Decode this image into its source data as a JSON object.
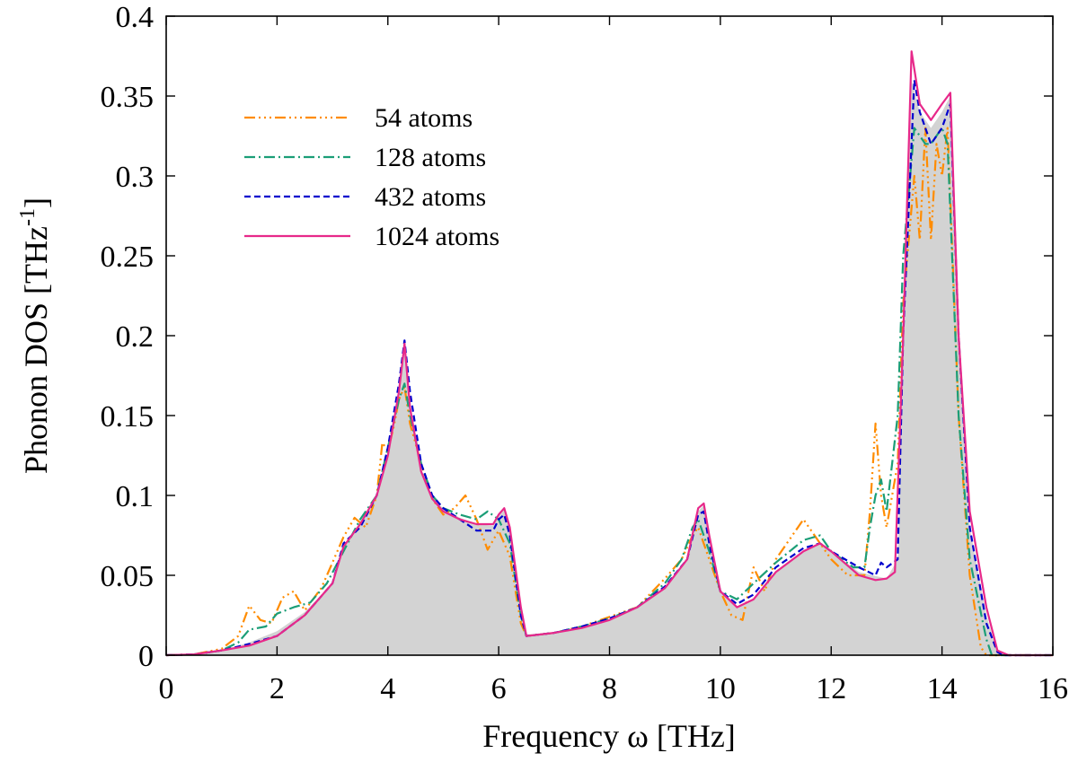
{
  "chart_data": {
    "type": "line",
    "xlabel": "Frequency ω [THz]",
    "ylabel_main": "Phonon DOS [THz",
    "ylabel_sup": "-1",
    "ylabel_end": "]",
    "xlim": [
      0,
      16
    ],
    "ylim": [
      0,
      0.4
    ],
    "xticks": [
      0,
      2,
      4,
      6,
      8,
      10,
      12,
      14,
      16
    ],
    "yticks": [
      0,
      0.05,
      0.1,
      0.15,
      0.2,
      0.25,
      0.3,
      0.35,
      0.4
    ],
    "xtick_labels": [
      "0",
      "2",
      "4",
      "6",
      "8",
      "10",
      "12",
      "14",
      "16"
    ],
    "ytick_labels": [
      "0",
      "0.05",
      "0.1",
      "0.15",
      "0.2",
      "0.25",
      "0.3",
      "0.35",
      "0.4"
    ],
    "grid": false,
    "legend_position": "top-left",
    "reference_fill": {
      "color": "#d3d3d3",
      "points": [
        [
          0,
          0
        ],
        [
          0.5,
          0.0005
        ],
        [
          1.0,
          0.003
        ],
        [
          1.5,
          0.008
        ],
        [
          2.0,
          0.015
        ],
        [
          2.5,
          0.027
        ],
        [
          3.0,
          0.045
        ],
        [
          3.2,
          0.068
        ],
        [
          3.5,
          0.082
        ],
        [
          3.8,
          0.1
        ],
        [
          4.0,
          0.125
        ],
        [
          4.2,
          0.165
        ],
        [
          4.3,
          0.193
        ],
        [
          4.4,
          0.155
        ],
        [
          4.6,
          0.115
        ],
        [
          4.8,
          0.098
        ],
        [
          5.0,
          0.092
        ],
        [
          5.3,
          0.086
        ],
        [
          5.6,
          0.082
        ],
        [
          5.9,
          0.081
        ],
        [
          6.0,
          0.087
        ],
        [
          6.1,
          0.091
        ],
        [
          6.2,
          0.08
        ],
        [
          6.4,
          0.03
        ],
        [
          6.5,
          0.013
        ],
        [
          7.0,
          0.014
        ],
        [
          7.5,
          0.017
        ],
        [
          8.0,
          0.022
        ],
        [
          8.5,
          0.03
        ],
        [
          9.0,
          0.042
        ],
        [
          9.4,
          0.06
        ],
        [
          9.6,
          0.09
        ],
        [
          9.7,
          0.094
        ],
        [
          9.8,
          0.072
        ],
        [
          10.0,
          0.04
        ],
        [
          10.3,
          0.03
        ],
        [
          10.6,
          0.035
        ],
        [
          11.0,
          0.052
        ],
        [
          11.5,
          0.065
        ],
        [
          11.8,
          0.07
        ],
        [
          12.0,
          0.065
        ],
        [
          12.5,
          0.052
        ],
        [
          13.0,
          0.048
        ],
        [
          13.2,
          0.06
        ],
        [
          13.3,
          0.2
        ],
        [
          13.45,
          0.36
        ],
        [
          13.6,
          0.34
        ],
        [
          13.8,
          0.33
        ],
        [
          14.0,
          0.34
        ],
        [
          14.15,
          0.35
        ],
        [
          14.3,
          0.2
        ],
        [
          14.5,
          0.08
        ],
        [
          14.8,
          0.025
        ],
        [
          15.0,
          0.002
        ],
        [
          15.2,
          0
        ],
        [
          16.0,
          0
        ]
      ]
    },
    "series": [
      {
        "name": "54 atoms",
        "color": "#ff8c00",
        "dash": "12,4,2,4,2,4,2,4",
        "points": [
          [
            0,
            0
          ],
          [
            0.5,
            0.0005
          ],
          [
            1.0,
            0.004
          ],
          [
            1.3,
            0.012
          ],
          [
            1.5,
            0.031
          ],
          [
            1.7,
            0.022
          ],
          [
            1.9,
            0.02
          ],
          [
            2.1,
            0.036
          ],
          [
            2.3,
            0.04
          ],
          [
            2.5,
            0.028
          ],
          [
            2.8,
            0.042
          ],
          [
            3.0,
            0.058
          ],
          [
            3.2,
            0.074
          ],
          [
            3.4,
            0.086
          ],
          [
            3.6,
            0.08
          ],
          [
            3.8,
            0.1
          ],
          [
            3.9,
            0.133
          ],
          [
            4.0,
            0.128
          ],
          [
            4.1,
            0.142
          ],
          [
            4.2,
            0.16
          ],
          [
            4.3,
            0.168
          ],
          [
            4.4,
            0.145
          ],
          [
            4.6,
            0.12
          ],
          [
            4.8,
            0.098
          ],
          [
            5.0,
            0.088
          ],
          [
            5.2,
            0.092
          ],
          [
            5.4,
            0.1
          ],
          [
            5.6,
            0.085
          ],
          [
            5.8,
            0.066
          ],
          [
            6.0,
            0.078
          ],
          [
            6.2,
            0.062
          ],
          [
            6.4,
            0.02
          ],
          [
            6.5,
            0.012
          ],
          [
            7.0,
            0.014
          ],
          [
            7.5,
            0.018
          ],
          [
            8.0,
            0.024
          ],
          [
            8.5,
            0.03
          ],
          [
            9.0,
            0.048
          ],
          [
            9.3,
            0.06
          ],
          [
            9.5,
            0.075
          ],
          [
            9.6,
            0.08
          ],
          [
            9.8,
            0.06
          ],
          [
            10.0,
            0.04
          ],
          [
            10.2,
            0.025
          ],
          [
            10.4,
            0.022
          ],
          [
            10.6,
            0.055
          ],
          [
            10.8,
            0.04
          ],
          [
            11.0,
            0.06
          ],
          [
            11.2,
            0.07
          ],
          [
            11.5,
            0.085
          ],
          [
            11.7,
            0.075
          ],
          [
            12.0,
            0.06
          ],
          [
            12.3,
            0.05
          ],
          [
            12.6,
            0.05
          ],
          [
            12.7,
            0.09
          ],
          [
            12.8,
            0.145
          ],
          [
            12.9,
            0.1
          ],
          [
            13.0,
            0.08
          ],
          [
            13.2,
            0.12
          ],
          [
            13.3,
            0.22
          ],
          [
            13.5,
            0.3
          ],
          [
            13.6,
            0.26
          ],
          [
            13.7,
            0.33
          ],
          [
            13.8,
            0.26
          ],
          [
            13.9,
            0.32
          ],
          [
            14.0,
            0.3
          ],
          [
            14.1,
            0.33
          ],
          [
            14.3,
            0.15
          ],
          [
            14.5,
            0.05
          ],
          [
            14.7,
            0.005
          ],
          [
            14.8,
            0
          ],
          [
            16.0,
            0
          ]
        ]
      },
      {
        "name": "128 atoms",
        "color": "#1b9e77",
        "dash": "12,4,2,4",
        "points": [
          [
            0,
            0
          ],
          [
            0.5,
            0.0005
          ],
          [
            1.0,
            0.003
          ],
          [
            1.3,
            0.008
          ],
          [
            1.5,
            0.016
          ],
          [
            1.8,
            0.018
          ],
          [
            2.0,
            0.026
          ],
          [
            2.3,
            0.03
          ],
          [
            2.6,
            0.033
          ],
          [
            2.9,
            0.045
          ],
          [
            3.2,
            0.065
          ],
          [
            3.5,
            0.085
          ],
          [
            3.8,
            0.1
          ],
          [
            4.0,
            0.13
          ],
          [
            4.2,
            0.16
          ],
          [
            4.3,
            0.17
          ],
          [
            4.4,
            0.15
          ],
          [
            4.6,
            0.12
          ],
          [
            4.8,
            0.1
          ],
          [
            5.0,
            0.092
          ],
          [
            5.3,
            0.088
          ],
          [
            5.6,
            0.085
          ],
          [
            5.8,
            0.09
          ],
          [
            6.0,
            0.085
          ],
          [
            6.2,
            0.07
          ],
          [
            6.4,
            0.025
          ],
          [
            6.5,
            0.012
          ],
          [
            7.0,
            0.014
          ],
          [
            7.5,
            0.018
          ],
          [
            8.0,
            0.023
          ],
          [
            8.5,
            0.03
          ],
          [
            9.0,
            0.045
          ],
          [
            9.3,
            0.06
          ],
          [
            9.5,
            0.08
          ],
          [
            9.6,
            0.085
          ],
          [
            9.8,
            0.065
          ],
          [
            10.0,
            0.04
          ],
          [
            10.3,
            0.035
          ],
          [
            10.6,
            0.045
          ],
          [
            11.0,
            0.058
          ],
          [
            11.5,
            0.072
          ],
          [
            11.8,
            0.075
          ],
          [
            12.0,
            0.065
          ],
          [
            12.4,
            0.055
          ],
          [
            12.6,
            0.055
          ],
          [
            12.7,
            0.08
          ],
          [
            12.8,
            0.1
          ],
          [
            12.9,
            0.11
          ],
          [
            13.0,
            0.09
          ],
          [
            13.2,
            0.15
          ],
          [
            13.3,
            0.25
          ],
          [
            13.5,
            0.33
          ],
          [
            13.7,
            0.32
          ],
          [
            13.8,
            0.32
          ],
          [
            14.0,
            0.33
          ],
          [
            14.1,
            0.32
          ],
          [
            14.3,
            0.15
          ],
          [
            14.5,
            0.06
          ],
          [
            14.8,
            0.01
          ],
          [
            14.9,
            0
          ],
          [
            16.0,
            0
          ]
        ]
      },
      {
        "name": "432 atoms",
        "color": "#0000cd",
        "dash": "7,4",
        "points": [
          [
            0,
            0
          ],
          [
            0.5,
            0.0005
          ],
          [
            1.0,
            0.003
          ],
          [
            1.5,
            0.007
          ],
          [
            2.0,
            0.012
          ],
          [
            2.5,
            0.025
          ],
          [
            3.0,
            0.045
          ],
          [
            3.2,
            0.07
          ],
          [
            3.5,
            0.08
          ],
          [
            3.8,
            0.1
          ],
          [
            4.0,
            0.13
          ],
          [
            4.2,
            0.17
          ],
          [
            4.3,
            0.197
          ],
          [
            4.4,
            0.165
          ],
          [
            4.6,
            0.12
          ],
          [
            4.8,
            0.1
          ],
          [
            5.0,
            0.092
          ],
          [
            5.3,
            0.085
          ],
          [
            5.6,
            0.078
          ],
          [
            5.9,
            0.078
          ],
          [
            6.0,
            0.085
          ],
          [
            6.1,
            0.088
          ],
          [
            6.2,
            0.075
          ],
          [
            6.4,
            0.025
          ],
          [
            6.5,
            0.012
          ],
          [
            7.0,
            0.014
          ],
          [
            7.5,
            0.018
          ],
          [
            8.0,
            0.023
          ],
          [
            8.5,
            0.03
          ],
          [
            9.0,
            0.043
          ],
          [
            9.4,
            0.06
          ],
          [
            9.6,
            0.088
          ],
          [
            9.7,
            0.09
          ],
          [
            9.8,
            0.07
          ],
          [
            10.0,
            0.04
          ],
          [
            10.3,
            0.032
          ],
          [
            10.6,
            0.038
          ],
          [
            11.0,
            0.055
          ],
          [
            11.5,
            0.067
          ],
          [
            11.8,
            0.07
          ],
          [
            12.0,
            0.065
          ],
          [
            12.5,
            0.055
          ],
          [
            12.8,
            0.05
          ],
          [
            12.9,
            0.058
          ],
          [
            13.0,
            0.055
          ],
          [
            13.2,
            0.06
          ],
          [
            13.3,
            0.2
          ],
          [
            13.5,
            0.36
          ],
          [
            13.6,
            0.34
          ],
          [
            13.8,
            0.32
          ],
          [
            14.0,
            0.33
          ],
          [
            14.15,
            0.345
          ],
          [
            14.3,
            0.2
          ],
          [
            14.5,
            0.08
          ],
          [
            14.8,
            0.02
          ],
          [
            15.0,
            0.002
          ],
          [
            15.1,
            0
          ],
          [
            16.0,
            0
          ]
        ]
      },
      {
        "name": "1024 atoms",
        "color": "#e7298a",
        "dash": "",
        "points": [
          [
            0,
            0
          ],
          [
            0.5,
            0.0005
          ],
          [
            1.0,
            0.003
          ],
          [
            1.5,
            0.006
          ],
          [
            2.0,
            0.012
          ],
          [
            2.5,
            0.025
          ],
          [
            3.0,
            0.045
          ],
          [
            3.2,
            0.068
          ],
          [
            3.5,
            0.082
          ],
          [
            3.8,
            0.1
          ],
          [
            4.0,
            0.125
          ],
          [
            4.2,
            0.165
          ],
          [
            4.3,
            0.195
          ],
          [
            4.4,
            0.155
          ],
          [
            4.6,
            0.115
          ],
          [
            4.8,
            0.098
          ],
          [
            5.0,
            0.09
          ],
          [
            5.3,
            0.085
          ],
          [
            5.6,
            0.082
          ],
          [
            5.9,
            0.082
          ],
          [
            6.0,
            0.088
          ],
          [
            6.1,
            0.092
          ],
          [
            6.2,
            0.08
          ],
          [
            6.4,
            0.03
          ],
          [
            6.5,
            0.012
          ],
          [
            7.0,
            0.014
          ],
          [
            7.5,
            0.017
          ],
          [
            8.0,
            0.022
          ],
          [
            8.5,
            0.03
          ],
          [
            9.0,
            0.042
          ],
          [
            9.4,
            0.06
          ],
          [
            9.6,
            0.092
          ],
          [
            9.7,
            0.095
          ],
          [
            9.8,
            0.075
          ],
          [
            10.0,
            0.04
          ],
          [
            10.3,
            0.03
          ],
          [
            10.6,
            0.035
          ],
          [
            11.0,
            0.052
          ],
          [
            11.5,
            0.065
          ],
          [
            11.8,
            0.07
          ],
          [
            12.0,
            0.065
          ],
          [
            12.5,
            0.05
          ],
          [
            12.8,
            0.047
          ],
          [
            13.0,
            0.048
          ],
          [
            13.15,
            0.052
          ],
          [
            13.3,
            0.2
          ],
          [
            13.45,
            0.378
          ],
          [
            13.6,
            0.345
          ],
          [
            13.8,
            0.335
          ],
          [
            14.0,
            0.345
          ],
          [
            14.15,
            0.352
          ],
          [
            14.3,
            0.2
          ],
          [
            14.5,
            0.09
          ],
          [
            14.8,
            0.03
          ],
          [
            15.0,
            0.003
          ],
          [
            15.2,
            0
          ],
          [
            16.0,
            0
          ]
        ]
      }
    ]
  }
}
